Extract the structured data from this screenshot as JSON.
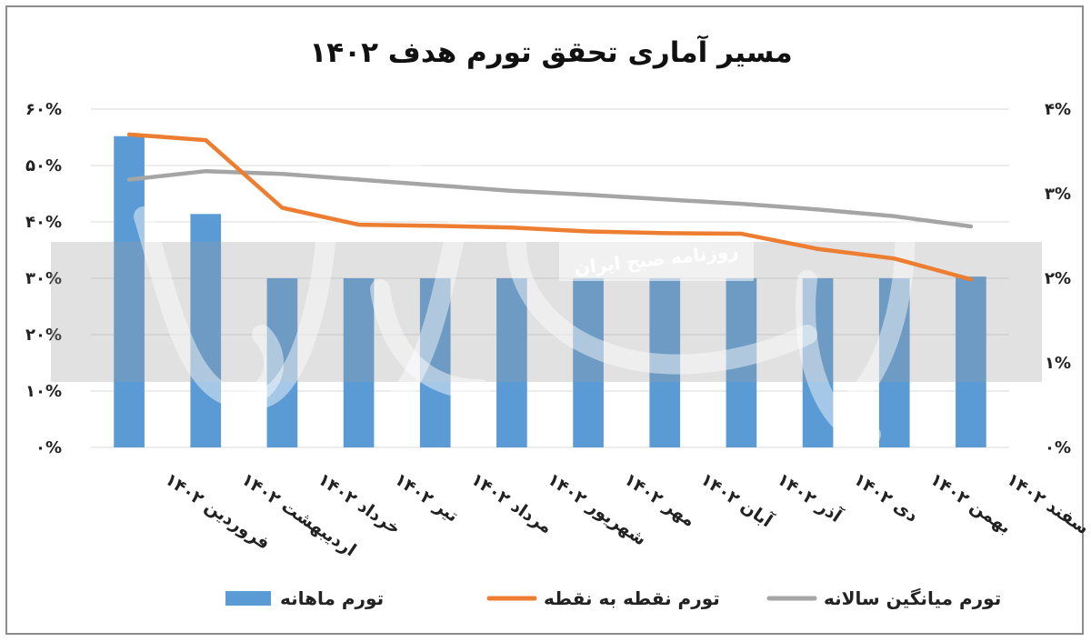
{
  "chart_data": {
    "type": "bar+line",
    "title": "مسیر آماری تحقق تورم هدف ۱۴۰۲",
    "categories": [
      "فروردین ۱۴۰۲",
      "اردیبهشت ۱۴۰۲",
      "خرداد ۱۴۰۲",
      "تیر ۱۴۰۲",
      "مرداد ۱۴۰۲",
      "شهریور ۱۴۰۲",
      "مهر ۱۴۰۲",
      "آبان ۱۴۰۲",
      "آذر ۱۴۰۲",
      "دی ۱۴۰۲",
      "بهمن ۱۴۰۲",
      "اسفند ۱۴۰۲"
    ],
    "y_left": {
      "ticks": [
        "۰%",
        "۱۰%",
        "۲۰%",
        "۳۰%",
        "۴۰%",
        "۵۰%",
        "۶۰%"
      ],
      "ylim": [
        0,
        60
      ]
    },
    "y_right": {
      "ticks": [
        "۰%",
        "۱%",
        "۲%",
        "۳%",
        "۴%"
      ],
      "ylim": [
        0,
        4
      ]
    },
    "series": [
      {
        "name": "تورم ماهانه",
        "type": "bar",
        "axis": "right",
        "color": "#5b9bd5",
        "values": [
          3.68,
          2.76,
          2.0,
          2.0,
          2.0,
          2.0,
          2.0,
          2.0,
          2.0,
          2.0,
          2.0,
          2.02
        ]
      },
      {
        "name": "تورم نقطه به نقطه",
        "type": "line",
        "axis": "left",
        "color": "#ed7d31",
        "values": [
          55.5,
          54.5,
          42.5,
          39.5,
          39.3,
          39.0,
          38.3,
          38.0,
          37.9,
          35.2,
          33.5,
          29.8
        ]
      },
      {
        "name": "تورم میانگین سالانه",
        "type": "line",
        "axis": "left",
        "color": "#a5a5a5",
        "values": [
          47.5,
          49.0,
          48.5,
          47.5,
          46.5,
          45.5,
          44.8,
          44.0,
          43.2,
          42.2,
          41.0,
          39.2
        ]
      }
    ],
    "grid": true,
    "legend_position": "bottom"
  },
  "watermark": {
    "source_label": "روزنامه صبح ایران",
    "logo_text": "دنیای اقتصاد"
  }
}
